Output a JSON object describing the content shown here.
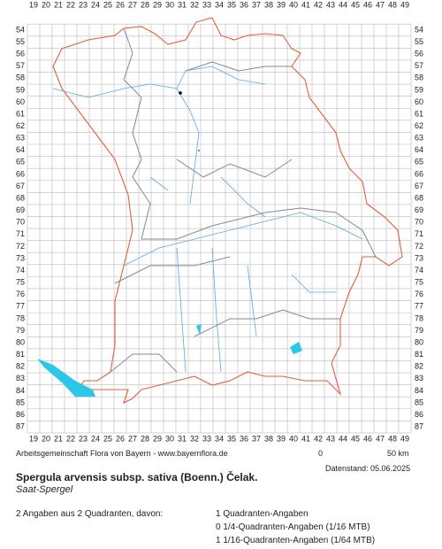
{
  "grid": {
    "columns": [
      19,
      20,
      21,
      22,
      23,
      24,
      25,
      26,
      27,
      28,
      29,
      30,
      31,
      32,
      33,
      34,
      35,
      36,
      37,
      38,
      39,
      40,
      41,
      42,
      43,
      44,
      45,
      46,
      47,
      48,
      49
    ],
    "rows": [
      54,
      55,
      56,
      57,
      58,
      59,
      60,
      61,
      62,
      63,
      64,
      65,
      66,
      67,
      68,
      69,
      70,
      71,
      72,
      73,
      74,
      75,
      76,
      77,
      78,
      79,
      80,
      81,
      82,
      83,
      84,
      85,
      86,
      87
    ]
  },
  "footer": {
    "source": "Arbeitsgemeinschaft Flora von Bayern - www.bayernflora.de",
    "scale_start": "0",
    "scale_end": "50 km",
    "date": "Datenstand: 05.06.2025"
  },
  "species": {
    "title": "Spergula arvensis subsp. sativa (Boenn.) Čelak.",
    "subtitle": "Saat-Spergel"
  },
  "summary": {
    "total": "2 Angaben aus 2 Quadranten, davon:",
    "lines": [
      "1 Quadranten-Angaben",
      "0 1/4-Quadranten-Angaben (1/16 MTB)",
      "1 1/16-Quadranten-Angaben (1/64 MTB)"
    ]
  }
}
